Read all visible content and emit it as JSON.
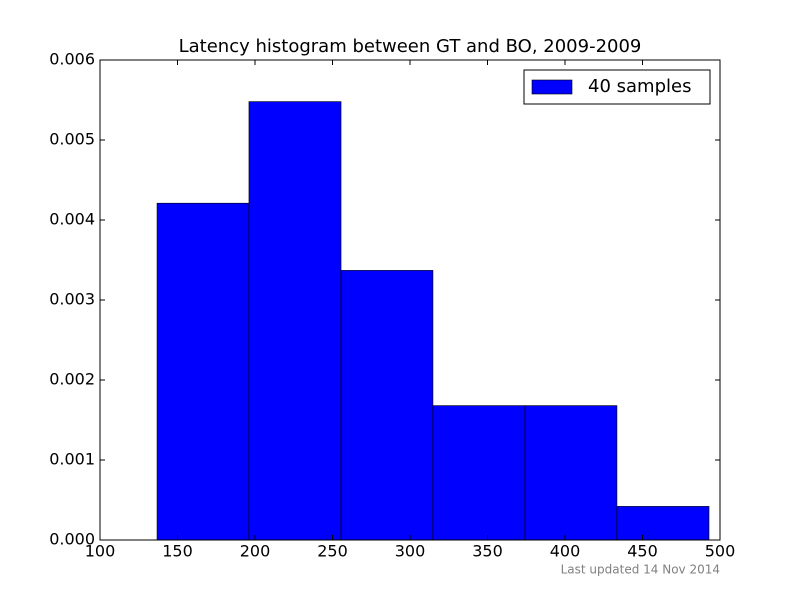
{
  "chart_data": {
    "type": "histogram",
    "title": "Latency histogram between GT and BO, 2009-2009",
    "bins": [
      136.8,
      196.1,
      255.5,
      314.8,
      374.2,
      433.5,
      492.9
    ],
    "series": [
      {
        "name": "40 samples",
        "color": "#0000ff",
        "values": [
          0.00421,
          0.00548,
          0.00337,
          0.00168,
          0.00168,
          0.00042
        ]
      }
    ],
    "xlim": [
      100,
      500
    ],
    "xticks": [
      100,
      150,
      200,
      250,
      300,
      350,
      400,
      450,
      500
    ],
    "ylim": [
      0,
      0.006
    ],
    "yticks": [
      {
        "value": 0,
        "label": "0.000"
      },
      {
        "value": 0.001,
        "label": "0.001"
      },
      {
        "value": 0.002,
        "label": "0.002"
      },
      {
        "value": 0.003,
        "label": "0.003"
      },
      {
        "value": 0.004,
        "label": "0.004"
      },
      {
        "value": 0.005,
        "label": "0.005"
      },
      {
        "value": 0.006,
        "label": "0.006"
      }
    ],
    "legend": "upper right",
    "annotation": "Last updated 14 Nov 2014"
  }
}
